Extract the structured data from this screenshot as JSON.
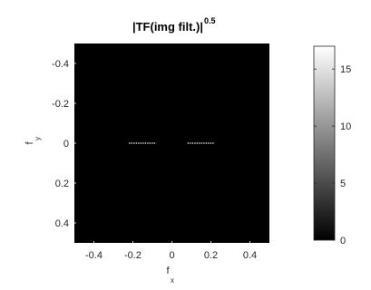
{
  "chart_data": {
    "type": "heatmap",
    "title": "|TF(img filt.)|",
    "title_exponent": "0.5",
    "xlabel": "f",
    "xlabel_sub": "x",
    "ylabel": "f",
    "ylabel_sub": "y",
    "xlim": [
      -0.5,
      0.5
    ],
    "ylim": [
      -0.5,
      0.5
    ],
    "y_reversed": true,
    "xticks": [
      -0.4,
      -0.2,
      0,
      0.2,
      0.4
    ],
    "yticks": [
      -0.4,
      -0.2,
      0,
      0.2,
      0.4
    ],
    "xtick_labels": [
      "-0.4",
      "-0.2",
      "0",
      "0.2",
      "0.4"
    ],
    "ytick_labels": [
      "-0.4",
      "-0.2",
      "0",
      "0.2",
      "0.4"
    ],
    "colormap": "gray",
    "background_value": 0,
    "color_range": [
      0,
      17
    ],
    "colorbar": {
      "ticks": [
        0,
        5,
        10,
        15
      ],
      "tick_labels": [
        "0",
        "5",
        "10",
        "15"
      ]
    },
    "bright_segments": [
      {
        "y": 0,
        "x_from": -0.22,
        "x_to": -0.08,
        "value": 14
      },
      {
        "y": 0,
        "x_from": 0.08,
        "x_to": 0.22,
        "value": 14
      }
    ]
  }
}
